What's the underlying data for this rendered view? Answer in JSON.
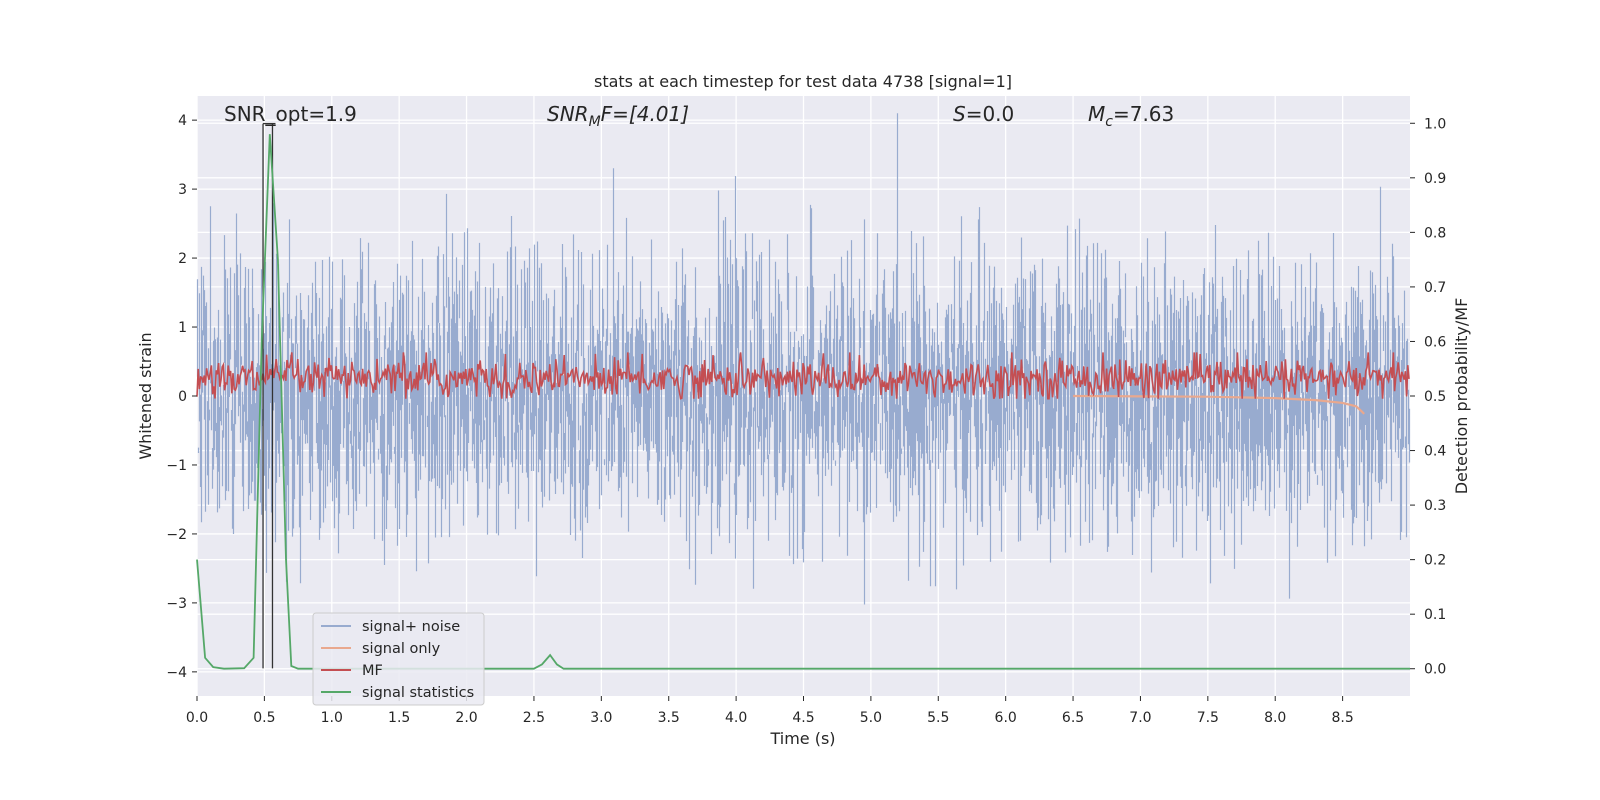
{
  "chart_data": {
    "type": "line",
    "title": "stats at each timestep for test data 4738 [signal=1]",
    "xlabel": "Time (s)",
    "ylabel_left": "Whitened strain",
    "ylabel_right": "Detection probability/MF",
    "xlim": [
      0,
      9.0
    ],
    "ylim_left": [
      -4.35,
      4.35
    ],
    "ylim_right": [
      -0.05,
      1.05
    ],
    "x_ticks": [
      0.0,
      0.5,
      1.0,
      1.5,
      2.0,
      2.5,
      3.0,
      3.5,
      4.0,
      4.5,
      5.0,
      5.5,
      6.0,
      6.5,
      7.0,
      7.5,
      8.0,
      8.5
    ],
    "x_tick_labels": [
      "0.0",
      "0.5",
      "1.0",
      "1.5",
      "2.0",
      "2.5",
      "3.0",
      "3.5",
      "4.0",
      "4.5",
      "5.0",
      "5.5",
      "6.0",
      "6.5",
      "7.0",
      "7.5",
      "8.0",
      "8.5"
    ],
    "y_left_ticks": [
      4,
      3,
      2,
      1,
      0,
      -1,
      -2,
      -3,
      -4
    ],
    "y_left_tick_labels": [
      "4",
      "3",
      "2",
      "1",
      "0",
      "−1",
      "−2",
      "−3",
      "−4"
    ],
    "y_right_ticks": [
      1.0,
      0.9,
      0.8,
      0.7,
      0.6,
      0.5,
      0.4,
      0.3,
      0.2,
      0.1,
      0.0
    ],
    "y_right_tick_labels": [
      "1.0",
      "0.9",
      "0.8",
      "0.7",
      "0.6",
      "0.5",
      "0.4",
      "0.3",
      "0.2",
      "0.1",
      "0.0"
    ],
    "annotations": {
      "snr_opt": "SNR_opt=1.9",
      "snr_mf_base": "SNR",
      "snr_mf_sub": "M",
      "snr_mf_rest": "F=[4.01]",
      "s_italic": "S",
      "s_rest": "=0.0",
      "mc_base": "M",
      "mc_sub": "c",
      "mc_rest": "=7.63"
    },
    "vertical_markers_s": [
      0.49,
      0.56
    ],
    "series": [
      {
        "name": "signal+ noise",
        "color": "#98abcf",
        "axis": "left",
        "description": "whitened noisy strain, ~N(0,1) over 0-9 s"
      },
      {
        "name": "signal only",
        "color": "#e9a88e",
        "axis": "left",
        "points": [
          [
            6.5,
            0.0
          ],
          [
            7.5,
            -0.01
          ],
          [
            8.0,
            -0.03
          ],
          [
            8.3,
            -0.06
          ],
          [
            8.5,
            -0.1
          ],
          [
            8.6,
            -0.15
          ],
          [
            8.64,
            -0.22
          ],
          [
            8.66,
            -0.26
          ]
        ]
      },
      {
        "name": "MF",
        "color": "#c44e52",
        "axis": "right",
        "description": "matched filter output, ~0.53 +/- 0.03"
      },
      {
        "name": "signal statistics",
        "color": "#55a868",
        "axis": "right",
        "points": [
          [
            0.0,
            0.2
          ],
          [
            0.06,
            0.02
          ],
          [
            0.12,
            0.003
          ],
          [
            0.2,
            0.0
          ],
          [
            0.35,
            0.001
          ],
          [
            0.42,
            0.02
          ],
          [
            0.48,
            0.6
          ],
          [
            0.54,
            0.98
          ],
          [
            0.6,
            0.75
          ],
          [
            0.66,
            0.2
          ],
          [
            0.7,
            0.005
          ],
          [
            0.75,
            0.0
          ],
          [
            2.5,
            0.0
          ],
          [
            2.56,
            0.008
          ],
          [
            2.62,
            0.025
          ],
          [
            2.67,
            0.008
          ],
          [
            2.72,
            0.0
          ],
          [
            9.0,
            0.0
          ]
        ]
      }
    ],
    "legend": {
      "position": "lower-left",
      "entries": [
        {
          "label": "signal+ noise",
          "color": "#98abcf"
        },
        {
          "label": "signal only",
          "color": "#e9a88e"
        },
        {
          "label": "MF",
          "color": "#c44e52"
        },
        {
          "label": "signal statistics",
          "color": "#55a868"
        }
      ]
    },
    "background_color": "#eaeaf2",
    "grid": true
  }
}
